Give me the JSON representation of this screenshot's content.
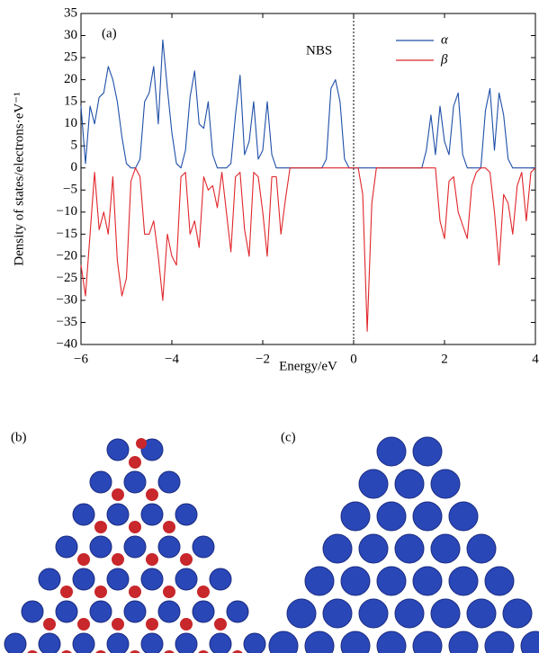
{
  "chart_data": {
    "type": "line",
    "panel_label": "(a)",
    "annotation": "NBS",
    "xlabel": "Energy/eV",
    "ylabel": "Density of states/electrons·eV⁻¹",
    "xlim": [
      -6,
      4
    ],
    "ylim": [
      -40,
      35
    ],
    "xticks": [
      {
        "value": -6,
        "label": "−6"
      },
      {
        "value": -4,
        "label": "−4"
      },
      {
        "value": -2,
        "label": "−2"
      },
      0,
      2,
      4
    ],
    "yticks": [
      {
        "value": -40,
        "label": "−40"
      },
      {
        "value": -35,
        "label": "−35"
      },
      {
        "value": -30,
        "label": "−30"
      },
      {
        "value": -25,
        "label": "−25"
      },
      {
        "value": -20,
        "label": "−20"
      },
      {
        "value": -15,
        "label": "−15"
      },
      {
        "value": -10,
        "label": "−10"
      },
      {
        "value": -5,
        "label": "−5"
      },
      0,
      5,
      10,
      15,
      20,
      25,
      30,
      35
    ],
    "reference_line_x": 0,
    "legend_position": "upper right",
    "x": [
      -6.0,
      -5.9,
      -5.8,
      -5.7,
      -5.6,
      -5.5,
      -5.4,
      -5.3,
      -5.2,
      -5.1,
      -5.0,
      -4.9,
      -4.8,
      -4.7,
      -4.6,
      -4.5,
      -4.4,
      -4.3,
      -4.2,
      -4.1,
      -4.0,
      -3.9,
      -3.8,
      -3.7,
      -3.6,
      -3.5,
      -3.4,
      -3.3,
      -3.2,
      -3.1,
      -3.0,
      -2.9,
      -2.8,
      -2.7,
      -2.6,
      -2.5,
      -2.4,
      -2.3,
      -2.2,
      -2.1,
      -2.0,
      -1.9,
      -1.8,
      -1.7,
      -1.6,
      -1.5,
      -1.4,
      -1.3,
      -1.2,
      -1.1,
      -1.0,
      -0.9,
      -0.8,
      -0.7,
      -0.6,
      -0.5,
      -0.4,
      -0.3,
      -0.2,
      -0.1,
      0.0,
      0.1,
      0.2,
      0.3,
      0.4,
      0.5,
      0.6,
      0.7,
      0.8,
      0.9,
      1.0,
      1.1,
      1.2,
      1.3,
      1.4,
      1.5,
      1.6,
      1.7,
      1.8,
      1.9,
      2.0,
      2.1,
      2.2,
      2.3,
      2.4,
      2.5,
      2.6,
      2.7,
      2.8,
      2.9,
      3.0,
      3.1,
      3.2,
      3.3,
      3.4,
      3.5,
      3.6,
      3.7,
      3.8,
      3.9,
      4.0
    ],
    "series": [
      {
        "name": "α",
        "color": "#1f4fa8",
        "values": [
          14,
          1,
          14,
          10,
          16,
          17,
          23,
          20,
          15,
          7,
          1,
          0,
          0,
          2,
          15,
          17,
          23,
          10,
          29,
          18,
          8,
          1,
          0,
          4,
          16,
          22,
          10,
          9,
          15,
          3,
          0,
          0,
          0,
          1,
          12,
          21,
          3,
          6,
          15,
          2,
          4,
          15,
          3,
          0,
          0,
          0,
          0,
          0,
          0,
          0,
          0,
          0,
          0,
          0,
          2,
          18,
          20,
          15,
          2,
          0,
          0,
          0,
          0,
          0,
          0,
          0,
          0,
          0,
          0,
          0,
          0,
          0,
          0,
          0,
          0,
          0,
          4,
          12,
          3,
          14,
          6,
          3,
          14,
          17,
          3,
          0,
          0,
          0,
          0,
          13,
          18,
          4,
          17,
          12,
          2,
          0,
          0,
          0,
          0,
          0,
          0
        ]
      },
      {
        "name": "β",
        "color": "#e0262a",
        "values": [
          -22,
          -29,
          -15,
          -1,
          -14,
          -10,
          -15,
          -2,
          -21,
          -29,
          -25,
          -3,
          0,
          -2,
          -15,
          -15,
          -12,
          -20,
          -30,
          -15,
          -20,
          -22,
          -2,
          -1,
          -15,
          -12,
          -18,
          -2,
          -5,
          -4,
          -9,
          -1,
          -10,
          -19,
          -2,
          -1,
          -14,
          -20,
          -1,
          -2,
          -10,
          -20,
          -2,
          -2,
          -15,
          -7,
          0,
          0,
          0,
          0,
          0,
          0,
          0,
          0,
          0,
          0,
          0,
          0,
          0,
          0,
          0,
          0,
          -6,
          -37,
          -8,
          0,
          0,
          0,
          0,
          0,
          0,
          0,
          0,
          0,
          0,
          0,
          0,
          0,
          0,
          -12,
          -16,
          -3,
          -2,
          -10,
          -13,
          -16,
          -4,
          -1,
          0,
          0,
          -1,
          -10,
          -22,
          -6,
          -8,
          -15,
          -4,
          -1,
          -12,
          -1,
          0
        ]
      }
    ]
  },
  "panels": [
    {
      "label": "(b)"
    },
    {
      "label": "(c)"
    }
  ]
}
